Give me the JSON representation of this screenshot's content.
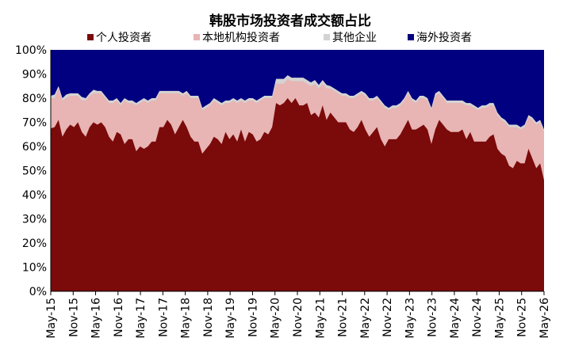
{
  "chart_data": {
    "type": "area",
    "stacked": true,
    "percent": true,
    "title": "韩股市场投资者成交额占比",
    "legend_position": "top",
    "y_ticks": [
      "0%",
      "10%",
      "20%",
      "30%",
      "40%",
      "50%",
      "60%",
      "70%",
      "80%",
      "90%",
      "100%"
    ],
    "ylim": [
      0,
      100
    ],
    "x_ticks": [
      "May-15",
      "Nov-15",
      "May-16",
      "Nov-16",
      "May-17",
      "Nov-17",
      "May-18",
      "Nov-18",
      "May-19",
      "Nov-19",
      "May-20",
      "Nov-20",
      "May-21",
      "Nov-21",
      "May-22",
      "Nov-22",
      "May-23",
      "Nov-23",
      "May-24",
      "Nov-24",
      "May-25",
      "Nov-25",
      "May-26"
    ],
    "series": [
      {
        "name": "个人投资者",
        "color": "#7B0A0A",
        "values": [
          67.5,
          68,
          71,
          64,
          67,
          69,
          68,
          70,
          66,
          64,
          68,
          70,
          69,
          70,
          68,
          64,
          62,
          66,
          65,
          61,
          63,
          63,
          58,
          60,
          59,
          60,
          62,
          62,
          68,
          68,
          71,
          69,
          65,
          68,
          71,
          68,
          64,
          62,
          62,
          57,
          59,
          61,
          64,
          63,
          61,
          66,
          63,
          65,
          62,
          67,
          62,
          66,
          65,
          62,
          63,
          66,
          65,
          68,
          78,
          77,
          78,
          80,
          78,
          80,
          77,
          77,
          78,
          73,
          74,
          72,
          77,
          71,
          74,
          72,
          70,
          70,
          70,
          67,
          66,
          68,
          71,
          67,
          64,
          66,
          68,
          63,
          60,
          63,
          63,
          63,
          65,
          68,
          71,
          67,
          67,
          68,
          69,
          67,
          61,
          67,
          71,
          69,
          67,
          66,
          66,
          66,
          67,
          63,
          66,
          62,
          62,
          62,
          62,
          64,
          65,
          59,
          57,
          56,
          52,
          51,
          54,
          53,
          53,
          59,
          55,
          51,
          53,
          46
        ]
      },
      {
        "name": "本地机构投资者",
        "color": "#E8B4B4",
        "values": [
          12.5,
          12,
          13,
          15,
          13,
          12,
          13,
          11,
          13,
          15,
          13,
          12,
          13,
          12,
          12,
          14,
          16,
          13,
          12,
          18,
          15,
          15,
          19,
          18,
          20,
          18,
          17,
          17,
          14,
          14,
          11,
          13,
          17,
          14,
          10,
          14,
          16,
          18,
          18,
          18,
          17,
          16,
          15,
          15,
          16,
          12,
          15,
          14,
          16,
          12,
          16,
          13,
          14,
          16,
          16,
          14,
          15,
          12,
          8,
          9,
          8,
          8,
          9,
          7,
          10,
          10,
          8,
          12,
          12,
          12,
          9,
          13,
          10,
          11,
          12,
          11,
          11,
          13,
          14,
          13,
          11,
          14,
          15,
          13,
          12,
          15,
          16,
          12,
          13,
          13,
          12,
          11,
          11,
          12,
          11,
          12,
          11,
          12,
          14,
          14,
          11,
          11,
          11,
          12,
          12,
          12,
          11,
          14,
          11,
          14,
          13,
          14,
          14,
          13,
          12,
          14,
          14,
          14,
          16,
          17,
          14,
          14,
          15,
          13,
          16,
          18,
          17,
          20
        ]
      },
      {
        "name": "其他企业",
        "color": "#D3D3D3",
        "values": [
          1,
          1.5,
          1,
          1,
          1.5,
          1,
          1,
          1,
          1.5,
          1,
          1,
          1.5,
          1,
          1,
          1,
          1,
          1,
          1,
          1,
          1,
          1,
          1,
          1,
          1,
          1,
          1,
          1,
          1,
          1,
          1,
          1,
          1,
          1,
          1,
          1,
          1,
          1,
          1,
          1,
          1,
          1,
          1,
          1,
          1,
          1,
          1,
          1,
          1,
          1,
          1,
          1,
          1,
          1,
          1,
          1,
          1,
          1,
          1,
          2,
          2,
          2,
          1.5,
          1.5,
          1.5,
          1.5,
          1.5,
          1.5,
          1.5,
          1.5,
          1.5,
          1.5,
          1.5,
          1,
          1,
          1,
          1,
          1,
          1,
          1,
          1,
          1,
          1,
          1,
          1,
          1,
          1,
          1,
          1,
          1,
          1,
          1,
          1,
          1,
          1,
          1,
          1,
          1,
          1,
          1,
          1,
          1,
          1,
          1,
          1,
          1,
          1,
          1,
          1,
          1,
          1,
          1,
          1,
          1,
          1,
          1,
          1,
          1,
          1,
          1,
          1,
          1,
          1,
          1,
          1,
          1,
          1,
          1,
          1
        ]
      },
      {
        "name": "海外投资者",
        "color": "#000080",
        "values": "remainder to 100%"
      }
    ]
  }
}
